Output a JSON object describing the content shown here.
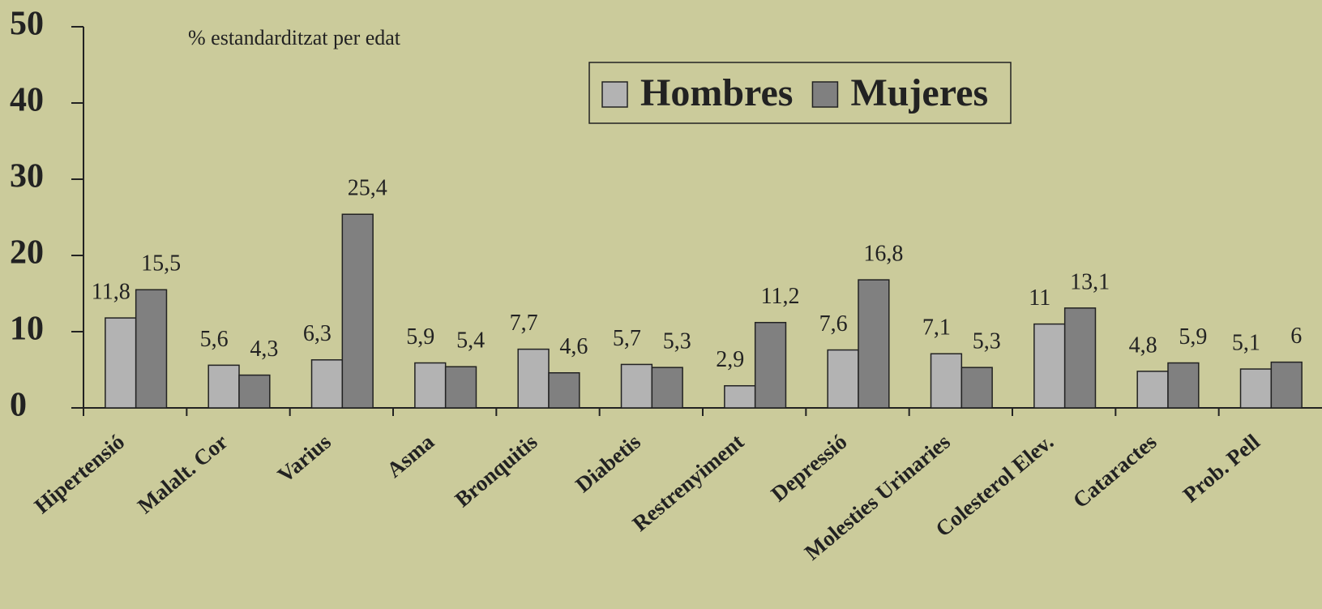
{
  "chart_data": {
    "type": "bar",
    "subtitle": "% estandarditzat per edat",
    "categories": [
      "Hipertensió",
      "Malalt. Cor",
      "Varius",
      "Asma",
      "Bronquitis",
      "Diabetis",
      "Restrenyiment",
      "Depressió",
      "Molesties Urinaries",
      "Colesterol Elev.",
      "Cataractes",
      "Prob. Pell"
    ],
    "series": [
      {
        "name": "Hombres",
        "color": "#b3b3b3",
        "values": [
          11.8,
          5.6,
          6.3,
          5.9,
          7.7,
          5.7,
          2.9,
          7.6,
          7.1,
          11,
          4.8,
          5.1
        ],
        "value_labels": [
          "11,8",
          "5,6",
          "6,3",
          "5,9",
          "7,7",
          "5,7",
          "2,9",
          "7,6",
          "7,1",
          "11",
          "4,8",
          "5,1"
        ]
      },
      {
        "name": "Mujeres",
        "color": "#808080",
        "values": [
          15.5,
          4.3,
          25.4,
          5.4,
          4.6,
          5.3,
          11.2,
          16.8,
          5.3,
          13.1,
          5.9,
          6
        ],
        "value_labels": [
          "15,5",
          "4,3",
          "25,4",
          "5,4",
          "4,6",
          "5,3",
          "11,2",
          "16,8",
          "5,3",
          "13,1",
          "5,9",
          "6"
        ]
      }
    ],
    "ylim": [
      0,
      50
    ],
    "yticks": [
      0,
      10,
      20,
      30,
      40,
      50
    ],
    "grid": false,
    "background": "#cbcb9b"
  }
}
